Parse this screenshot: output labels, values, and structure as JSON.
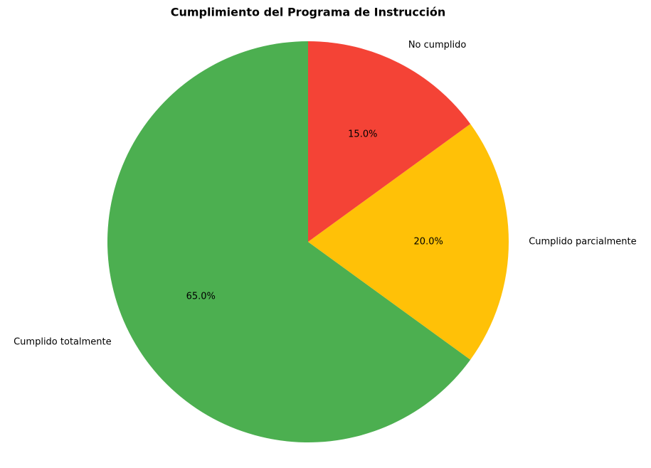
{
  "chart_data": {
    "type": "pie",
    "title": "Cumplimiento del Programa de Instrucción",
    "categories": [
      "Cumplido totalmente",
      "Cumplido parcialmente",
      "No cumplido"
    ],
    "values": [
      65,
      20,
      15
    ],
    "value_labels": [
      "65.0%",
      "20.0%",
      "15.0%"
    ],
    "colors": [
      "#4caf50",
      "#ffc107",
      "#f44336"
    ]
  }
}
